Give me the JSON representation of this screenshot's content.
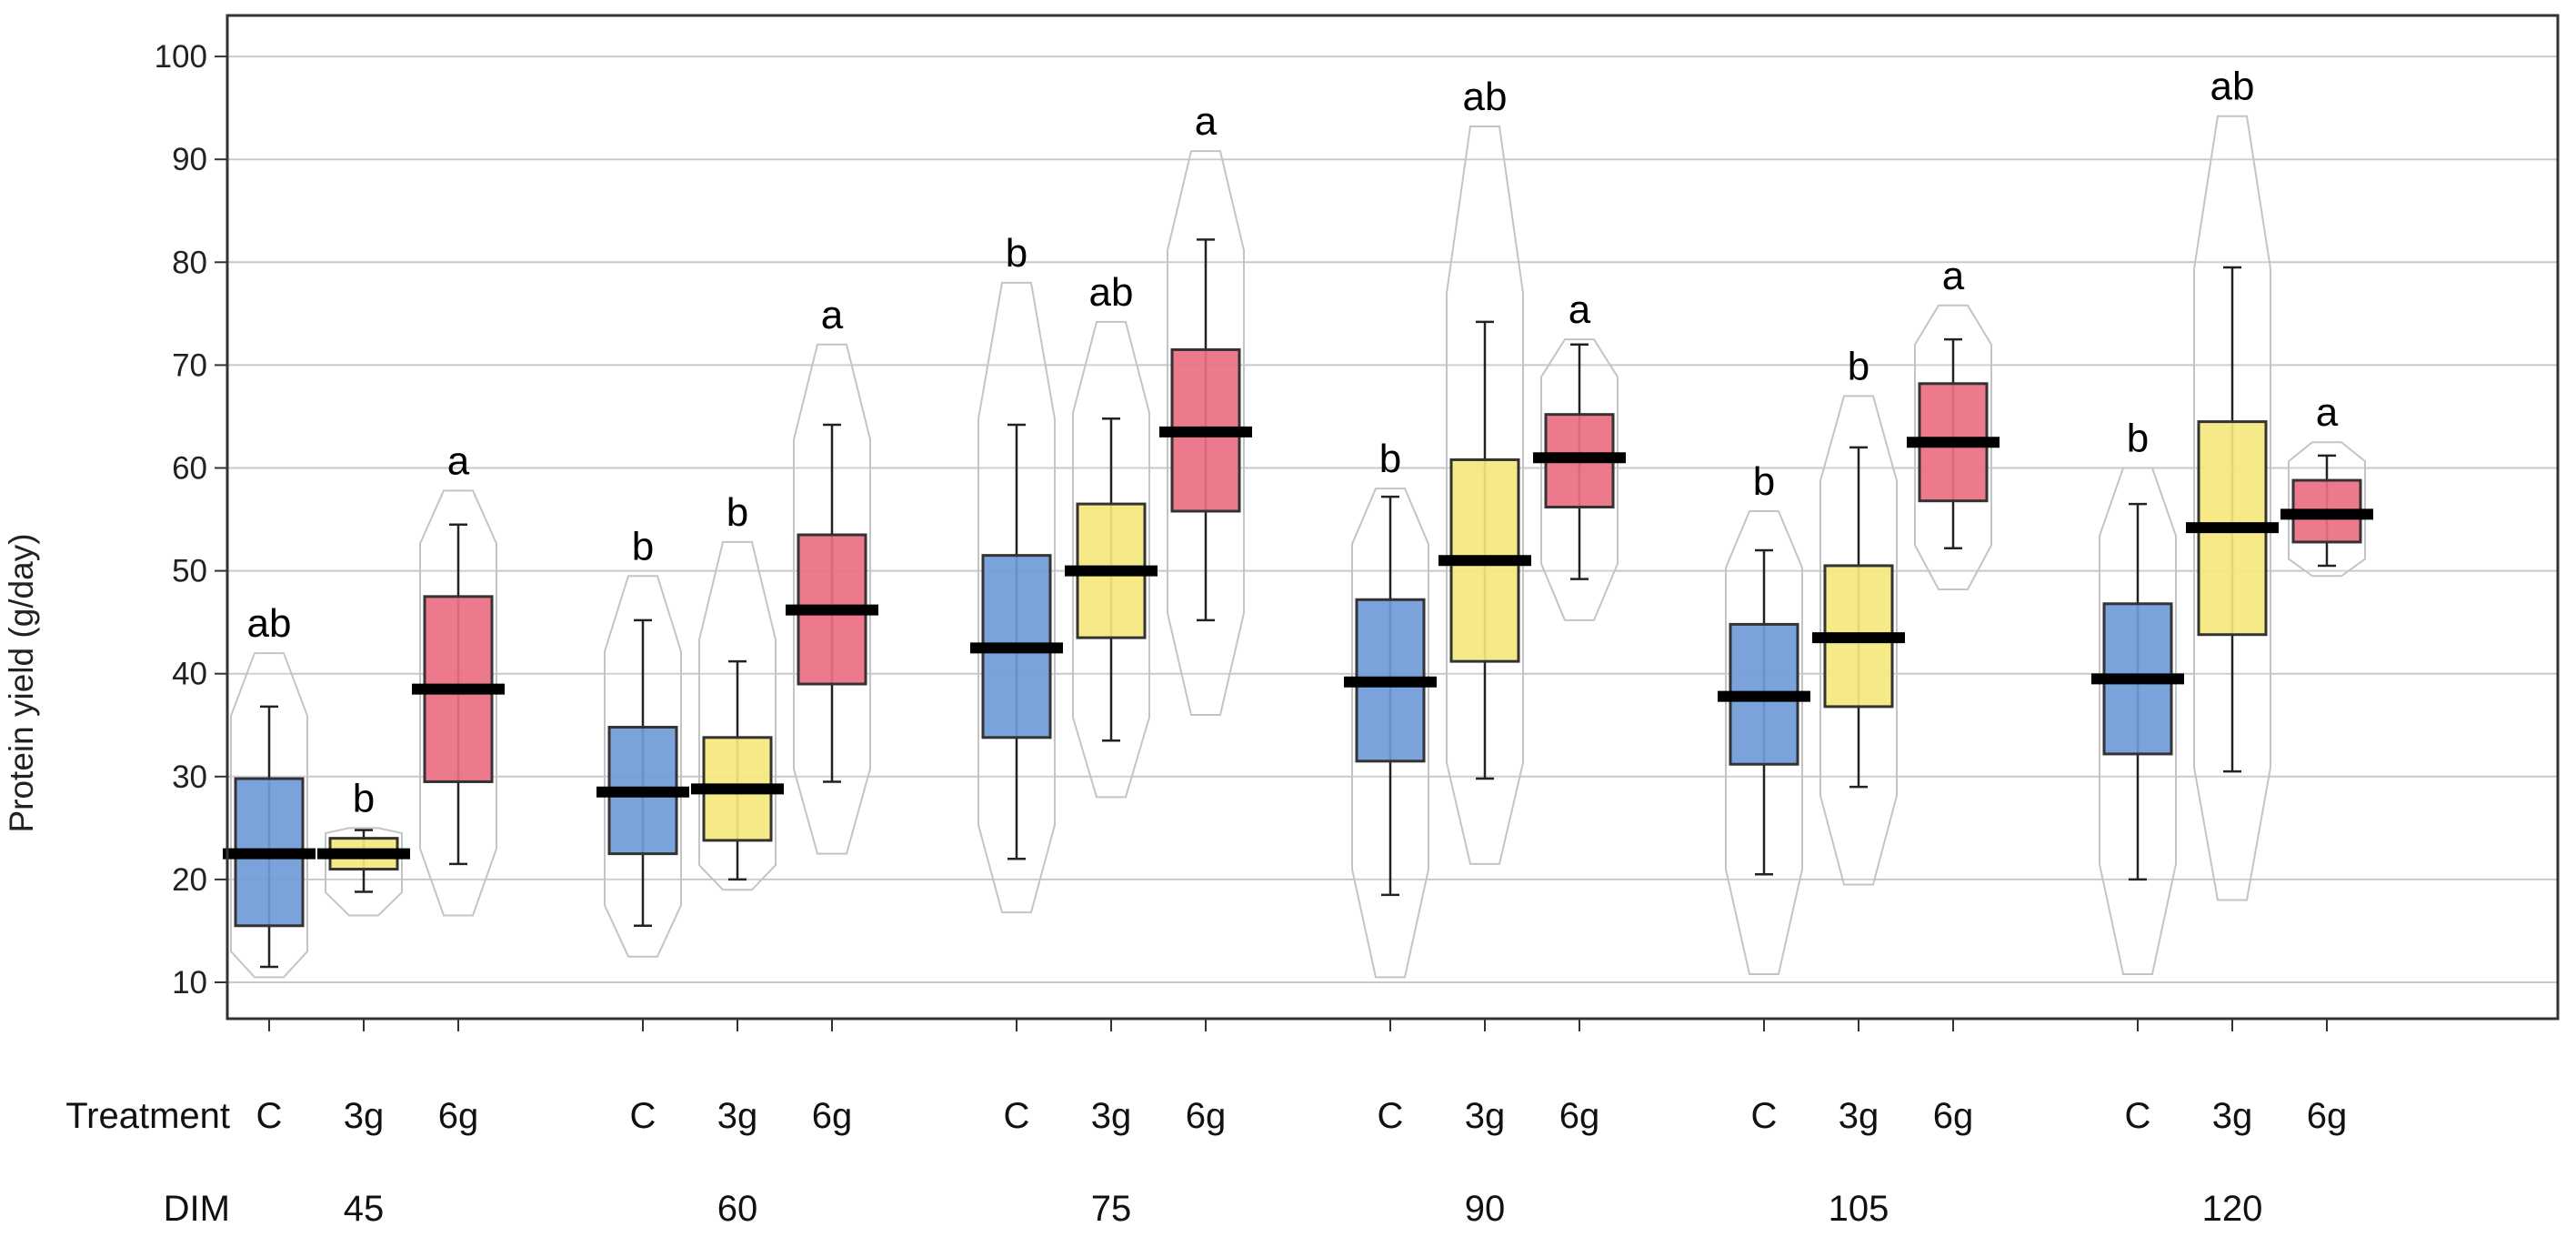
{
  "chart_data": {
    "type": "boxplot",
    "ylabel": "Protein yield (g/day)",
    "ylim": [
      6,
      104
    ],
    "yticks": [
      10,
      20,
      30,
      40,
      50,
      60,
      70,
      80,
      90,
      100
    ],
    "grid": true,
    "row_labels": {
      "treatment": "Treatment",
      "dim": "DIM"
    },
    "colors": {
      "C": "#6f9bd8",
      "3g": "#f4e77e",
      "6g": "#ea6f82"
    },
    "groups": [
      {
        "dim": "45",
        "boxes": [
          {
            "treatment": "C",
            "min": 11.5,
            "q1": 15.5,
            "median": 22.5,
            "q3": 29.8,
            "max": 36.8,
            "range_min": 10.5,
            "range_max": 42.0,
            "letter": "ab"
          },
          {
            "treatment": "3g",
            "min": 18.8,
            "q1": 21.0,
            "median": 22.5,
            "q3": 24.0,
            "max": 24.8,
            "range_min": 16.5,
            "range_max": 25.0,
            "letter": "b"
          },
          {
            "treatment": "6g",
            "min": 21.5,
            "q1": 29.5,
            "median": 38.5,
            "q3": 47.5,
            "max": 54.5,
            "range_min": 16.5,
            "range_max": 57.8,
            "letter": "a"
          }
        ]
      },
      {
        "dim": "60",
        "boxes": [
          {
            "treatment": "C",
            "min": 15.5,
            "q1": 22.5,
            "median": 28.5,
            "q3": 34.8,
            "max": 45.2,
            "range_min": 12.5,
            "range_max": 49.5,
            "letter": "b"
          },
          {
            "treatment": "3g",
            "min": 20.0,
            "q1": 23.8,
            "median": 28.8,
            "q3": 33.8,
            "max": 41.2,
            "range_min": 19.0,
            "range_max": 52.8,
            "letter": "b"
          },
          {
            "treatment": "6g",
            "min": 29.5,
            "q1": 39.0,
            "median": 46.2,
            "q3": 53.5,
            "max": 64.2,
            "range_min": 22.5,
            "range_max": 72.0,
            "letter": "a"
          }
        ]
      },
      {
        "dim": "75",
        "boxes": [
          {
            "treatment": "C",
            "min": 22.0,
            "q1": 33.8,
            "median": 42.5,
            "q3": 51.5,
            "max": 64.2,
            "range_min": 16.8,
            "range_max": 78.0,
            "letter": "b"
          },
          {
            "treatment": "3g",
            "min": 33.5,
            "q1": 43.5,
            "median": 50.0,
            "q3": 56.5,
            "max": 64.8,
            "range_min": 28.0,
            "range_max": 74.2,
            "letter": "ab"
          },
          {
            "treatment": "6g",
            "min": 45.2,
            "q1": 55.8,
            "median": 63.5,
            "q3": 71.5,
            "max": 82.2,
            "range_min": 36.0,
            "range_max": 90.8,
            "letter": "a"
          }
        ]
      },
      {
        "dim": "90",
        "boxes": [
          {
            "treatment": "C",
            "min": 18.5,
            "q1": 31.5,
            "median": 39.2,
            "q3": 47.2,
            "max": 57.2,
            "range_min": 10.5,
            "range_max": 58.0,
            "letter": "b"
          },
          {
            "treatment": "3g",
            "min": 29.8,
            "q1": 41.2,
            "median": 51.0,
            "q3": 60.8,
            "max": 74.2,
            "range_min": 21.5,
            "range_max": 93.2,
            "letter": "ab"
          },
          {
            "treatment": "6g",
            "min": 49.2,
            "q1": 56.2,
            "median": 61.0,
            "q3": 65.2,
            "max": 72.0,
            "range_min": 45.2,
            "range_max": 72.5,
            "letter": "a"
          }
        ]
      },
      {
        "dim": "105",
        "boxes": [
          {
            "treatment": "C",
            "min": 20.5,
            "q1": 31.2,
            "median": 37.8,
            "q3": 44.8,
            "max": 52.0,
            "range_min": 10.8,
            "range_max": 55.8,
            "letter": "b"
          },
          {
            "treatment": "3g",
            "min": 29.0,
            "q1": 36.8,
            "median": 43.5,
            "q3": 50.5,
            "max": 62.0,
            "range_min": 19.5,
            "range_max": 67.0,
            "letter": "b"
          },
          {
            "treatment": "6g",
            "min": 52.2,
            "q1": 56.8,
            "median": 62.5,
            "q3": 68.2,
            "max": 72.5,
            "range_min": 48.2,
            "range_max": 75.8,
            "letter": "a"
          }
        ]
      },
      {
        "dim": "120",
        "boxes": [
          {
            "treatment": "C",
            "min": 20.0,
            "q1": 32.2,
            "median": 39.5,
            "q3": 46.8,
            "max": 56.5,
            "range_min": 10.8,
            "range_max": 60.0,
            "letter": "b"
          },
          {
            "treatment": "3g",
            "min": 30.5,
            "q1": 43.8,
            "median": 54.2,
            "q3": 64.5,
            "max": 79.5,
            "range_min": 18.0,
            "range_max": 94.2,
            "letter": "ab"
          },
          {
            "treatment": "6g",
            "min": 50.5,
            "q1": 52.8,
            "median": 55.5,
            "q3": 58.8,
            "max": 61.2,
            "range_min": 49.5,
            "range_max": 62.5,
            "letter": "a"
          }
        ]
      }
    ]
  }
}
